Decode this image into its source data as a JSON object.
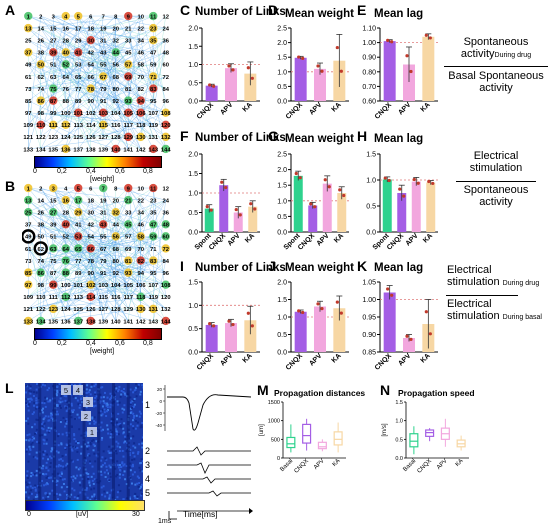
{
  "panel_letters": [
    "A",
    "B",
    "C",
    "D",
    "E",
    "F",
    "G",
    "H",
    "I",
    "J",
    "K",
    "L",
    "M",
    "N"
  ],
  "colorbar_top": {
    "ticks": [
      "0",
      "0,2",
      "0,4",
      "0,6",
      "0,8"
    ],
    "label": "[weight]"
  },
  "colorbar_bottom": {
    "ticks": [
      "0",
      "0,2",
      "0,4",
      "0,6",
      "0,8"
    ],
    "label": "[weight]"
  },
  "right_text": {
    "row1": {
      "top": "Spontaneous",
      "top2": "activity",
      "sub": "During drug",
      "bottom": "Basal Spontaneous",
      "bottom2": "activity"
    },
    "row2": {
      "top": "Electrical",
      "top2": "stimulation",
      "bottom": "Spontaneous",
      "bottom2": "activity"
    },
    "row3": {
      "top": "Electrical",
      "top2": "stimulation",
      "sub_top": "During drug",
      "bottom": "Electrical",
      "bottom2": "stimulation",
      "sub_bottom": "During basal"
    }
  },
  "panel_L": {
    "colorbar_ticks": [
      "0",
      "30"
    ],
    "colorbar_unit": "[uV]",
    "electrode_labels": [
      "5",
      "4",
      "3",
      "2",
      "1"
    ],
    "trace_labels": [
      "1",
      "2",
      "3",
      "4",
      "5"
    ],
    "time_label": "Time[ms]",
    "scale_label": "1ms",
    "yticks": [
      "20",
      "0",
      "-20",
      "-40"
    ]
  },
  "chart_data": [
    {
      "panel": "C",
      "type": "bar",
      "title": "Number of Links",
      "categories": [
        "CNQX",
        "APV",
        "KA"
      ],
      "values": [
        0.42,
        0.9,
        0.75
      ],
      "errors": [
        0.04,
        0.12,
        0.32
      ],
      "colors": [
        "#a45ee5",
        "#f2a7de",
        "#f7d7a4"
      ],
      "ylim": [
        0,
        2
      ],
      "yticks": [
        0.0,
        0.5,
        1.0,
        1.5,
        2.0
      ],
      "refline": 1.0
    },
    {
      "panel": "D",
      "type": "bar",
      "title": "Mean weight",
      "categories": [
        "CNQX",
        "APV",
        "KA"
      ],
      "values": [
        1.48,
        1.1,
        1.38
      ],
      "errors": [
        0.05,
        0.2,
        0.9
      ],
      "colors": [
        "#a45ee5",
        "#f2a7de",
        "#f7d7a4"
      ],
      "ylim": [
        0,
        2.5
      ],
      "yticks": [
        0.0,
        0.5,
        1.0,
        1.5,
        2.0,
        2.5
      ],
      "refline": 1.0
    },
    {
      "panel": "E",
      "type": "bar",
      "title": "Mean lag",
      "categories": [
        "CNQX",
        "APV",
        "KA"
      ],
      "values": [
        1.01,
        0.85,
        1.04
      ],
      "errors": [
        0.01,
        0.12,
        0.02
      ],
      "colors": [
        "#a45ee5",
        "#f2a7de",
        "#f7d7a4"
      ],
      "ylim": [
        0.6,
        1.1
      ],
      "yticks": [
        0.6,
        0.7,
        0.8,
        0.9,
        1.0,
        1.1
      ],
      "refline": 1.0
    },
    {
      "panel": "F",
      "type": "bar",
      "title": "Number of Links",
      "categories": [
        "Spont",
        "CNQX",
        "APV",
        "KA"
      ],
      "values": [
        0.6,
        1.2,
        0.5,
        0.65
      ],
      "errors": [
        0.1,
        0.15,
        0.15,
        0.15
      ],
      "colors": [
        "#2ed28e",
        "#a45ee5",
        "#f2a7de",
        "#f7d7a4"
      ],
      "ylim": [
        0,
        2
      ],
      "yticks": [
        0.0,
        0.5,
        1.0,
        1.5,
        2.0
      ],
      "refline": 1.0
    },
    {
      "panel": "G",
      "type": "bar",
      "title": "Mean weight",
      "categories": [
        "Spont",
        "CNQX",
        "APV",
        "KA"
      ],
      "values": [
        1.8,
        0.85,
        1.55,
        1.25
      ],
      "errors": [
        0.15,
        0.1,
        0.25,
        0.2
      ],
      "colors": [
        "#2ed28e",
        "#a45ee5",
        "#f2a7de",
        "#f7d7a4"
      ],
      "ylim": [
        0,
        2.5
      ],
      "yticks": [
        0.0,
        0.5,
        1.0,
        1.5,
        2.0,
        2.5
      ],
      "refline": 1.0
    },
    {
      "panel": "H",
      "type": "bar",
      "title": "Mean lag",
      "categories": [
        "Spont",
        "CNQX",
        "APV",
        "KA"
      ],
      "values": [
        1.01,
        0.75,
        0.97,
        0.95
      ],
      "errors": [
        0.05,
        0.15,
        0.08,
        0.04
      ],
      "colors": [
        "#2ed28e",
        "#a45ee5",
        "#f2a7de",
        "#f7d7a4"
      ],
      "ylim": [
        0,
        1.5
      ],
      "yticks": [
        0.0,
        0.5,
        1.0,
        1.5
      ],
      "refline": 1.0
    },
    {
      "panel": "I",
      "type": "bar",
      "title": "Number of Links",
      "categories": [
        "CNQX",
        "APV",
        "KA"
      ],
      "values": [
        0.58,
        0.62,
        0.68
      ],
      "errors": [
        0.05,
        0.08,
        0.3
      ],
      "colors": [
        "#a45ee5",
        "#f2a7de",
        "#f7d7a4"
      ],
      "ylim": [
        0,
        1.5
      ],
      "yticks": [
        0.0,
        0.5,
        1.0,
        1.5
      ],
      "refline": 1.0
    },
    {
      "panel": "J",
      "type": "bar",
      "title": "Mean weight",
      "categories": [
        "CNQX",
        "APV",
        "KA"
      ],
      "values": [
        1.15,
        1.3,
        1.25
      ],
      "errors": [
        0.05,
        0.15,
        0.35
      ],
      "colors": [
        "#a45ee5",
        "#f2a7de",
        "#f7d7a4"
      ],
      "ylim": [
        0,
        2.0
      ],
      "yticks": [
        0.0,
        0.5,
        1.0,
        1.5,
        2.0
      ],
      "refline": 1.0
    },
    {
      "panel": "K",
      "type": "bar",
      "title": "Mean lag",
      "categories": [
        "CNQX",
        "APV",
        "KA"
      ],
      "values": [
        1.02,
        0.89,
        0.93
      ],
      "errors": [
        0.02,
        0.01,
        0.07
      ],
      "colors": [
        "#a45ee5",
        "#f2a7de",
        "#f7d7a4"
      ],
      "ylim": [
        0.85,
        1.05
      ],
      "yticks": [
        0.85,
        0.9,
        0.95,
        1.0,
        1.05
      ],
      "refline": 1.0
    },
    {
      "panel": "M",
      "type": "box",
      "title": "Propagation distances",
      "ylabel": "[um]",
      "categories": [
        "Basal",
        "CNQX",
        "APV",
        "KA"
      ],
      "colors": [
        "#2ed28e",
        "#a45ee5",
        "#f2a7de",
        "#f7d7a4"
      ],
      "ylim": [
        0,
        1500
      ],
      "yticks": [
        0,
        500,
        1000,
        1500
      ],
      "boxes": [
        {
          "min": 150,
          "q1": 280,
          "med": 380,
          "q3": 550,
          "max": 900
        },
        {
          "min": 200,
          "q1": 400,
          "med": 600,
          "q3": 900,
          "max": 1050
        },
        {
          "min": 180,
          "q1": 250,
          "med": 300,
          "q3": 420,
          "max": 500
        },
        {
          "min": 150,
          "q1": 350,
          "med": 500,
          "q3": 700,
          "max": 950
        }
      ]
    },
    {
      "panel": "N",
      "type": "box",
      "title": "Propagation speed",
      "ylabel": "[m/s]",
      "categories": [
        "Basal",
        "CNQX",
        "APV",
        "KA"
      ],
      "colors": [
        "#2ed28e",
        "#a45ee5",
        "#f2a7de",
        "#f7d7a4"
      ],
      "ylim": [
        0,
        1.5
      ],
      "yticks": [
        0.0,
        0.5,
        1.0,
        1.5
      ],
      "boxes": [
        {
          "min": 0.1,
          "q1": 0.3,
          "med": 0.45,
          "q3": 0.65,
          "max": 0.85
        },
        {
          "min": 0.45,
          "q1": 0.58,
          "med": 0.68,
          "q3": 0.75,
          "max": 0.8
        },
        {
          "min": 0.3,
          "q1": 0.5,
          "med": 0.65,
          "q3": 0.8,
          "max": 1.05
        },
        {
          "min": 0.2,
          "q1": 0.3,
          "med": 0.38,
          "q3": 0.48,
          "max": 0.6
        }
      ]
    }
  ]
}
